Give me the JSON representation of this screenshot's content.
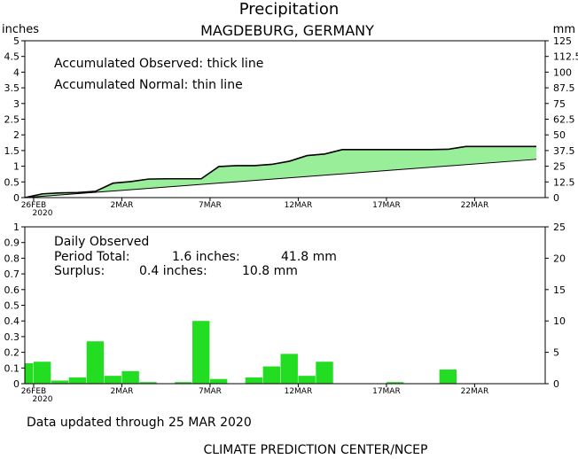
{
  "page": {
    "title": "Precipitation",
    "subtitle": "MAGDEBURG, GERMANY",
    "left_unit": "inches",
    "right_unit": "mm",
    "footer_updated": "Data updated through 25 MAR 2020",
    "footer_credit": "CLIMATE PREDICTION CENTER/NCEP"
  },
  "colors": {
    "green": "#22dd22",
    "area_green": "#99ee99",
    "axis": "#000000"
  },
  "chart_data": [
    {
      "type": "area",
      "name": "accumulated",
      "annotations": [
        "Accumulated Observed: thick line",
        "Accumulated Normal: thin line"
      ],
      "x_labels": [
        {
          "day": 0,
          "label": "26FEB"
        },
        {
          "day": 5,
          "label": "2MAR"
        },
        {
          "day": 10,
          "label": "7MAR"
        },
        {
          "day": 15,
          "label": "12MAR"
        },
        {
          "day": 20,
          "label": "17MAR"
        },
        {
          "day": 25,
          "label": "22MAR"
        }
      ],
      "year_label": "2020",
      "xlim": [
        -0.5,
        29
      ],
      "ylim": [
        0,
        5
      ],
      "y_ticks": [
        "0",
        "0.5",
        "1",
        "1.5",
        "2",
        "2.5",
        "3",
        "3.5",
        "4",
        "4.5",
        "5"
      ],
      "y2lim": [
        0,
        125
      ],
      "y2_ticks": [
        "0",
        "12.5",
        "25",
        "37.5",
        "50",
        "62.5",
        "75",
        "87.5",
        "100",
        "112.5",
        "125"
      ],
      "series": [
        {
          "name": "Accumulated Observed",
          "days": [
            -0.5,
            0.5,
            1.5,
            2.5,
            3.5,
            4.5,
            5.5,
            6.5,
            7.5,
            8.5,
            9.5,
            10.5,
            11.5,
            12.5,
            13.5,
            14.5,
            15.5,
            16.5,
            17.5,
            18.5,
            19.5,
            20.5,
            21.5,
            22.5,
            23.5,
            24.5,
            25.5,
            26.5,
            27.5,
            28.5
          ],
          "values": [
            0,
            0.12,
            0.15,
            0.16,
            0.2,
            0.46,
            0.51,
            0.59,
            0.6,
            0.6,
            0.6,
            0.99,
            1.02,
            1.02,
            1.06,
            1.16,
            1.34,
            1.39,
            1.53,
            1.53,
            1.53,
            1.53,
            1.53,
            1.53,
            1.54,
            1.63,
            1.63,
            1.63,
            1.63,
            1.63
          ]
        },
        {
          "name": "Accumulated Normal",
          "days": [
            -0.5,
            28.5
          ],
          "values": [
            0,
            1.22
          ]
        }
      ]
    },
    {
      "type": "bar",
      "name": "daily",
      "annotations": [
        "Daily Observed"
      ],
      "period_total_label": "Period Total:",
      "period_total_inches": "1.6 inches:",
      "period_total_mm": "41.8 mm",
      "surplus_label": "Surplus:",
      "surplus_inches": "0.4 inches:",
      "surplus_mm": "10.8 mm",
      "ylim": [
        0,
        1
      ],
      "y_ticks": [
        "0",
        "0.1",
        "0.2",
        "0.3",
        "0.4",
        "0.5",
        "0.6",
        "0.7",
        "0.8",
        "0.9",
        "1"
      ],
      "y2lim": [
        0,
        25
      ],
      "y2_ticks": [
        "0",
        "5",
        "10",
        "15",
        "20",
        "25"
      ],
      "days": [
        -1,
        0,
        1,
        2,
        3,
        4,
        5,
        6,
        7,
        8,
        9,
        10,
        11,
        12,
        13,
        14,
        15,
        16,
        17,
        18,
        19,
        20,
        21,
        22,
        23,
        24,
        25,
        26,
        27,
        28
      ],
      "values": [
        0.13,
        0.14,
        0.02,
        0.04,
        0.27,
        0.05,
        0.08,
        0.01,
        0.0,
        0.01,
        0.4,
        0.03,
        0.0,
        0.04,
        0.11,
        0.19,
        0.05,
        0.14,
        0.0,
        0.0,
        0.0,
        0.01,
        0.0,
        0.0,
        0.09,
        0.0,
        0.0,
        0.0,
        0.0,
        0.0
      ]
    }
  ]
}
